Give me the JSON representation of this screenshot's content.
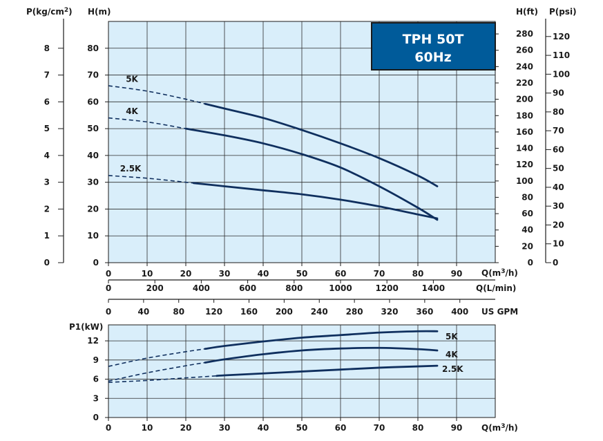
{
  "chart_data": [
    {
      "type": "line",
      "title": "TPH 50T",
      "subtitle": "60Hz",
      "xlabel": "Q(m3/h)",
      "xlabel_main": "Q(m",
      "xlabel_sup": "3",
      "xlabel_tail": "/h)",
      "xlim": [
        0,
        100
      ],
      "x_ticks": [
        0,
        10,
        20,
        30,
        40,
        50,
        60,
        70,
        80,
        90
      ],
      "secondary_x_axes": [
        {
          "label": "Q(L/min)",
          "ticks": [
            0,
            200,
            400,
            600,
            800,
            1000,
            1200,
            1400
          ],
          "max": 1666.7
        },
        {
          "label": "US GPM",
          "ticks": [
            0,
            40,
            80,
            120,
            160,
            200,
            240,
            280,
            320,
            360,
            400
          ],
          "max": 440.3
        }
      ],
      "ylabel": "H(m)",
      "ylim": [
        0,
        90
      ],
      "y_ticks": [
        0,
        10,
        20,
        30,
        40,
        50,
        60,
        70,
        80
      ],
      "secondary_y_axes": [
        {
          "label_main": "P(kg/cm",
          "label_sup": "2",
          "label_tail": ")",
          "ticks": [
            0,
            1,
            2,
            3,
            4,
            5,
            6,
            7,
            8
          ],
          "max": 9.0
        },
        {
          "label": "H(ft)",
          "ticks": [
            0,
            20,
            40,
            60,
            80,
            100,
            120,
            140,
            160,
            180,
            200,
            220,
            240,
            260,
            280
          ],
          "max": 295.3
        },
        {
          "label": "P(psi)",
          "ticks": [
            0,
            10,
            20,
            30,
            40,
            50,
            60,
            70,
            80,
            90,
            100,
            110,
            120
          ],
          "max": 128.0
        }
      ],
      "grid": true,
      "series": [
        {
          "name": "5K",
          "dash_until": 25,
          "points": [
            [
              0,
              66
            ],
            [
              10,
              64
            ],
            [
              20,
              61
            ],
            [
              30,
              57.5
            ],
            [
              40,
              54
            ],
            [
              50,
              49.5
            ],
            [
              60,
              44.5
            ],
            [
              70,
              39
            ],
            [
              80,
              32.5
            ],
            [
              85,
              28.5
            ]
          ]
        },
        {
          "name": "4K",
          "dash_until": 20,
          "points": [
            [
              0,
              54
            ],
            [
              10,
              52.5
            ],
            [
              20,
              50
            ],
            [
              30,
              47.5
            ],
            [
              40,
              44.5
            ],
            [
              50,
              40.5
            ],
            [
              60,
              35.5
            ],
            [
              70,
              28.5
            ],
            [
              80,
              20.5
            ],
            [
              85,
              16
            ]
          ]
        },
        {
          "name": "2.5K",
          "dash_until": 22,
          "points": [
            [
              0,
              32.5
            ],
            [
              10,
              31.5
            ],
            [
              20,
              30
            ],
            [
              30,
              28.5
            ],
            [
              40,
              27
            ],
            [
              50,
              25.5
            ],
            [
              60,
              23.5
            ],
            [
              70,
              21
            ],
            [
              80,
              18
            ],
            [
              85,
              16.5
            ]
          ]
        }
      ]
    },
    {
      "type": "line",
      "xlabel": "Q(m3/h)",
      "xlabel_main": "Q(m",
      "xlabel_sup": "3",
      "xlabel_tail": "/h)",
      "xlim": [
        0,
        100
      ],
      "x_ticks": [
        0,
        10,
        20,
        30,
        40,
        50,
        60,
        70,
        80,
        90
      ],
      "ylabel": "P1(kW)",
      "ylim": [
        0,
        14.5
      ],
      "y_ticks": [
        0,
        3,
        6,
        9,
        12
      ],
      "grid": true,
      "series": [
        {
          "name": "5K",
          "dash_until": 25,
          "points": [
            [
              0,
              8
            ],
            [
              10,
              9.3
            ],
            [
              20,
              10.3
            ],
            [
              30,
              11.2
            ],
            [
              40,
              11.9
            ],
            [
              50,
              12.5
            ],
            [
              60,
              12.9
            ],
            [
              70,
              13.3
            ],
            [
              80,
              13.5
            ],
            [
              85,
              13.5
            ]
          ]
        },
        {
          "name": "4K",
          "dash_until": 25,
          "points": [
            [
              0,
              5.7
            ],
            [
              10,
              7
            ],
            [
              20,
              8.1
            ],
            [
              30,
              9.1
            ],
            [
              40,
              9.9
            ],
            [
              50,
              10.5
            ],
            [
              60,
              10.8
            ],
            [
              70,
              10.9
            ],
            [
              80,
              10.7
            ],
            [
              85,
              10.5
            ]
          ]
        },
        {
          "name": "2.5K",
          "dash_until": 28,
          "points": [
            [
              0,
              5.5
            ],
            [
              10,
              5.8
            ],
            [
              20,
              6.2
            ],
            [
              30,
              6.6
            ],
            [
              40,
              6.9
            ],
            [
              50,
              7.2
            ],
            [
              60,
              7.5
            ],
            [
              70,
              7.8
            ],
            [
              80,
              8
            ],
            [
              85,
              8.1
            ]
          ]
        }
      ]
    }
  ],
  "colors": {
    "plot_bg": "#d9eefa",
    "grid": "#2b2b2b",
    "curve": "#0f2f5e",
    "title_box": "#005b9a",
    "axis": "#1a1a1a"
  }
}
